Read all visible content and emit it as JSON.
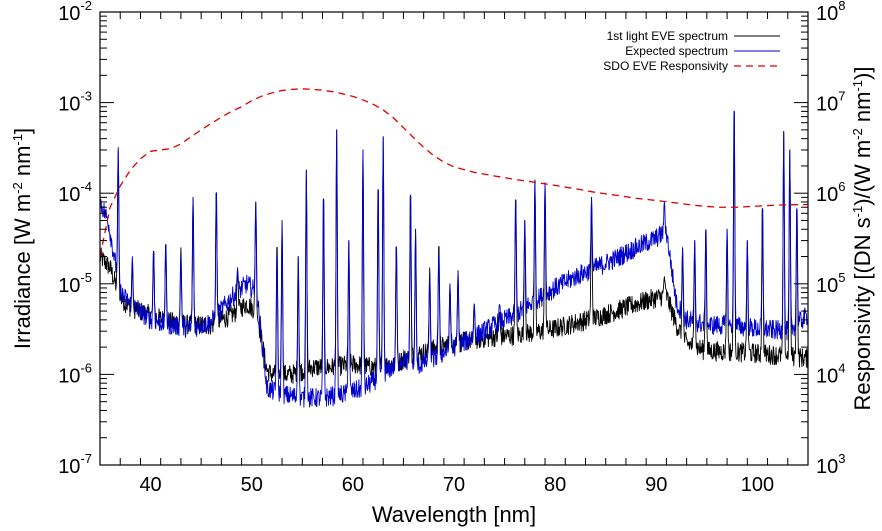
{
  "chart_data": {
    "type": "line",
    "title": "",
    "xlabel": "Wavelength [nm]",
    "ylabel_left": {
      "prefix": "Irradiance [W m",
      "sup1": "-2",
      "mid": " nm",
      "sup2": "-1",
      "suffix": "]"
    },
    "ylabel_right": {
      "prefix": "Responsivity [(DN s",
      "sup1": "-1",
      "mid1": ")/(W m",
      "sup2": "-2",
      "mid2": " nm",
      "sup3": "-1",
      "suffix": ")]"
    },
    "xlim": [
      35,
      105
    ],
    "ylim_left": [
      1e-07,
      0.01
    ],
    "ylim_right": [
      1000.0,
      100000000.0
    ],
    "yscale": "log",
    "grid": false,
    "legend_position": "top-right",
    "x_ticks": [
      {
        "value": 40,
        "label": "40"
      },
      {
        "value": 50,
        "label": "50"
      },
      {
        "value": 60,
        "label": "60"
      },
      {
        "value": 70,
        "label": "70"
      },
      {
        "value": 80,
        "label": "80"
      },
      {
        "value": 90,
        "label": "90"
      },
      {
        "value": 100,
        "label": "100"
      }
    ],
    "y_ticks_left": [
      {
        "value": 1e-07,
        "base": "10",
        "exp": "-7"
      },
      {
        "value": 1e-06,
        "base": "10",
        "exp": "-6"
      },
      {
        "value": 1e-05,
        "base": "10",
        "exp": "-5"
      },
      {
        "value": 0.0001,
        "base": "10",
        "exp": "-4"
      },
      {
        "value": 0.001,
        "base": "10",
        "exp": "-3"
      },
      {
        "value": 0.01,
        "base": "10",
        "exp": "-2"
      }
    ],
    "y_ticks_right": [
      {
        "value": 1000.0,
        "base": "10",
        "exp": "3"
      },
      {
        "value": 10000.0,
        "base": "10",
        "exp": "4"
      },
      {
        "value": 100000.0,
        "base": "10",
        "exp": "5"
      },
      {
        "value": 1000000.0,
        "base": "10",
        "exp": "6"
      },
      {
        "value": 10000000.0,
        "base": "10",
        "exp": "7"
      },
      {
        "value": 100000000.0,
        "base": "10",
        "exp": "8"
      }
    ],
    "series": [
      {
        "name": "1st light EVE spectrum",
        "color": "#000000",
        "axis": "left",
        "style": "solid",
        "continuum": [
          [
            35,
            2e-05
          ],
          [
            36,
            1.5e-05
          ],
          [
            37,
            7e-06
          ],
          [
            38,
            5.5e-06
          ],
          [
            40,
            4.5e-06
          ],
          [
            42,
            3.8e-06
          ],
          [
            44,
            3.5e-06
          ],
          [
            46,
            3.5e-06
          ],
          [
            48,
            4.5e-06
          ],
          [
            49.5,
            6e-06
          ],
          [
            50.5,
            5e-06
          ],
          [
            51.5,
            1.1e-06
          ],
          [
            52,
            1e-06
          ],
          [
            54,
            1e-06
          ],
          [
            56,
            1.2e-06
          ],
          [
            58,
            1.2e-06
          ],
          [
            60,
            1.3e-06
          ],
          [
            62,
            1.2e-06
          ],
          [
            64,
            1.3e-06
          ],
          [
            66,
            1.6e-06
          ],
          [
            68,
            1.9e-06
          ],
          [
            70,
            2.2e-06
          ],
          [
            72,
            2.4e-06
          ],
          [
            74,
            2.6e-06
          ],
          [
            76,
            2.7e-06
          ],
          [
            78,
            2.9e-06
          ],
          [
            80,
            3.2e-06
          ],
          [
            82,
            3.7e-06
          ],
          [
            84,
            4.2e-06
          ],
          [
            86,
            5e-06
          ],
          [
            88,
            6e-06
          ],
          [
            90,
            7e-06
          ],
          [
            91,
            7.5e-06
          ],
          [
            92,
            3.5e-06
          ],
          [
            93,
            2.2e-06
          ],
          [
            95,
            1.8e-06
          ],
          [
            97,
            1.8e-06
          ],
          [
            100,
            1.7e-06
          ],
          [
            103,
            1.6e-06
          ],
          [
            105,
            1.5e-06
          ]
        ],
        "lines": [
          [
            36.8,
            0.0003
          ],
          [
            38.2,
            1.6e-05
          ],
          [
            40.3,
            2.5e-05
          ],
          [
            41.5,
            3e-05
          ],
          [
            43.0,
            2.5e-05
          ],
          [
            44.2,
            9e-05
          ],
          [
            46.5,
            0.00012
          ],
          [
            48.6,
            1.5e-05
          ],
          [
            50.4,
            8e-05
          ],
          [
            52.5,
            3e-05
          ],
          [
            53.0,
            5e-05
          ],
          [
            54.6,
            2e-05
          ],
          [
            55.4,
            0.00018
          ],
          [
            57.1,
            0.00011
          ],
          [
            58.4,
            0.0005
          ],
          [
            59.6,
            3e-05
          ],
          [
            61.0,
            0.0003
          ],
          [
            62.5,
            0.00014
          ],
          [
            63.0,
            0.00042
          ],
          [
            64.3,
            3e-05
          ],
          [
            65.7,
            0.00012
          ],
          [
            66.2,
            4e-05
          ],
          [
            67.6,
            1.5e-05
          ],
          [
            68.5,
            3e-05
          ],
          [
            69.6,
            1e-05
          ],
          [
            70.4,
            1.4e-05
          ],
          [
            72.0,
            6e-06
          ],
          [
            74.5,
            5e-06
          ],
          [
            76.1,
            0.0001
          ],
          [
            77.0,
            5e-05
          ],
          [
            78.0,
            0.00014
          ],
          [
            79.0,
            0.00013
          ],
          [
            83.6,
            9e-05
          ],
          [
            90.8,
            1.2e-05
          ],
          [
            92.6,
            2.5e-05
          ],
          [
            93.8,
            3e-05
          ],
          [
            94.9,
            4.5e-05
          ],
          [
            97.0,
            4e-05
          ],
          [
            97.7,
            0.0011
          ],
          [
            99.0,
            3e-05
          ],
          [
            100.5,
            8e-05
          ],
          [
            102.6,
            0.00048
          ],
          [
            103.2,
            0.0003
          ],
          [
            103.9,
            8e-05
          ]
        ]
      },
      {
        "name": "Expected spectrum",
        "color": "#0000cc",
        "axis": "left",
        "style": "solid",
        "continuum": [
          [
            35,
            8e-05
          ],
          [
            35.8,
            5e-05
          ],
          [
            37,
            8e-06
          ],
          [
            38,
            6e-06
          ],
          [
            40,
            4e-06
          ],
          [
            42,
            3.5e-06
          ],
          [
            44,
            3.2e-06
          ],
          [
            46,
            3.8e-06
          ],
          [
            48,
            7e-06
          ],
          [
            49.5,
            1e-05
          ],
          [
            50.5,
            8e-06
          ],
          [
            51.5,
            7e-07
          ],
          [
            53,
            6e-07
          ],
          [
            55,
            5.5e-07
          ],
          [
            57,
            5.5e-07
          ],
          [
            59,
            6e-07
          ],
          [
            61,
            7e-07
          ],
          [
            63,
            1e-06
          ],
          [
            65,
            1.5e-06
          ],
          [
            66,
            1.2e-06
          ],
          [
            68,
            1.5e-06
          ],
          [
            70,
            2e-06
          ],
          [
            72,
            2.6e-06
          ],
          [
            74,
            3.5e-06
          ],
          [
            76,
            4.5e-06
          ],
          [
            78,
            6.5e-06
          ],
          [
            80,
            9e-06
          ],
          [
            82,
            1.2e-05
          ],
          [
            84,
            1.5e-05
          ],
          [
            86,
            1.9e-05
          ],
          [
            88,
            2.5e-05
          ],
          [
            90,
            3.2e-05
          ],
          [
            91,
            3.8e-05
          ],
          [
            92,
            6e-06
          ],
          [
            93,
            4e-06
          ],
          [
            95,
            3.5e-06
          ],
          [
            97,
            3.5e-06
          ],
          [
            100,
            3.2e-06
          ],
          [
            103,
            3e-06
          ],
          [
            105,
            4.5e-06
          ]
        ],
        "lines": [
          [
            36.8,
            0.00032
          ],
          [
            38.2,
            2e-05
          ],
          [
            40.3,
            2.5e-05
          ],
          [
            41.5,
            3e-05
          ],
          [
            43.0,
            2e-05
          ],
          [
            44.2,
            9e-05
          ],
          [
            46.5,
            0.00012
          ],
          [
            48.6,
            1.5e-05
          ],
          [
            50.4,
            8e-05
          ],
          [
            52.5,
            2.5e-05
          ],
          [
            53.0,
            4.5e-05
          ],
          [
            54.6,
            2e-05
          ],
          [
            55.4,
            0.00018
          ],
          [
            57.1,
            0.00011
          ],
          [
            58.4,
            0.0005
          ],
          [
            59.6,
            3e-05
          ],
          [
            61.0,
            0.0003
          ],
          [
            62.5,
            0.00014
          ],
          [
            63.0,
            0.00042
          ],
          [
            64.3,
            3e-05
          ],
          [
            65.7,
            0.00012
          ],
          [
            66.2,
            4e-05
          ],
          [
            67.6,
            1.3e-05
          ],
          [
            68.5,
            2.5e-05
          ],
          [
            69.6,
            1e-05
          ],
          [
            70.4,
            1.3e-05
          ],
          [
            72.0,
            6e-06
          ],
          [
            74.5,
            6e-06
          ],
          [
            76.1,
            0.0001
          ],
          [
            77.0,
            5e-05
          ],
          [
            78.0,
            0.00014
          ],
          [
            79.0,
            0.00013
          ],
          [
            83.6,
            9e-05
          ],
          [
            90.8,
            8e-05
          ],
          [
            92.6,
            2.5e-05
          ],
          [
            93.8,
            3e-05
          ],
          [
            94.9,
            4.5e-05
          ],
          [
            97.0,
            4e-05
          ],
          [
            97.7,
            0.0011
          ],
          [
            99.0,
            3e-05
          ],
          [
            100.5,
            8e-05
          ],
          [
            102.6,
            0.00048
          ],
          [
            103.2,
            0.0003
          ],
          [
            103.9,
            8e-05
          ]
        ]
      },
      {
        "name": "SDO EVE Responsivity",
        "color": "#dd0000",
        "axis": "right",
        "style": "dashed",
        "x": [
          35,
          36,
          37,
          38,
          39,
          40,
          41,
          42,
          43,
          44,
          45,
          46,
          47,
          48,
          49,
          50,
          51,
          52,
          53,
          54,
          55,
          56,
          57,
          58,
          59,
          60,
          61,
          62,
          63,
          64,
          65,
          66,
          67,
          68,
          69,
          70,
          72,
          74,
          76,
          78,
          80,
          82,
          84,
          86,
          88,
          90,
          92,
          94,
          96,
          98,
          100,
          102,
          105
        ],
        "values": [
          200000.0,
          700000.0,
          1200000.0,
          1800000.0,
          2400000.0,
          2900000.0,
          3000000.0,
          3100000.0,
          3500000.0,
          4200000.0,
          5000000.0,
          5900000.0,
          6900000.0,
          8000000.0,
          9000000.0,
          10500000.0,
          11800000.0,
          12800000.0,
          13600000.0,
          14000000.0,
          14200000.0,
          14000000.0,
          13700000.0,
          13200000.0,
          12500000.0,
          11700000.0,
          10700000.0,
          9600000.0,
          8300000.0,
          6800000.0,
          5300000.0,
          4100000.0,
          3200000.0,
          2600000.0,
          2200000.0,
          1950000.0,
          1700000.0,
          1550000.0,
          1420000.0,
          1320000.0,
          1220000.0,
          1120000.0,
          1020000.0,
          950000.0,
          880000.0,
          830000.0,
          780000.0,
          730000.0,
          700000.0,
          700000.0,
          720000.0,
          740000.0,
          750000.0
        ]
      }
    ]
  }
}
